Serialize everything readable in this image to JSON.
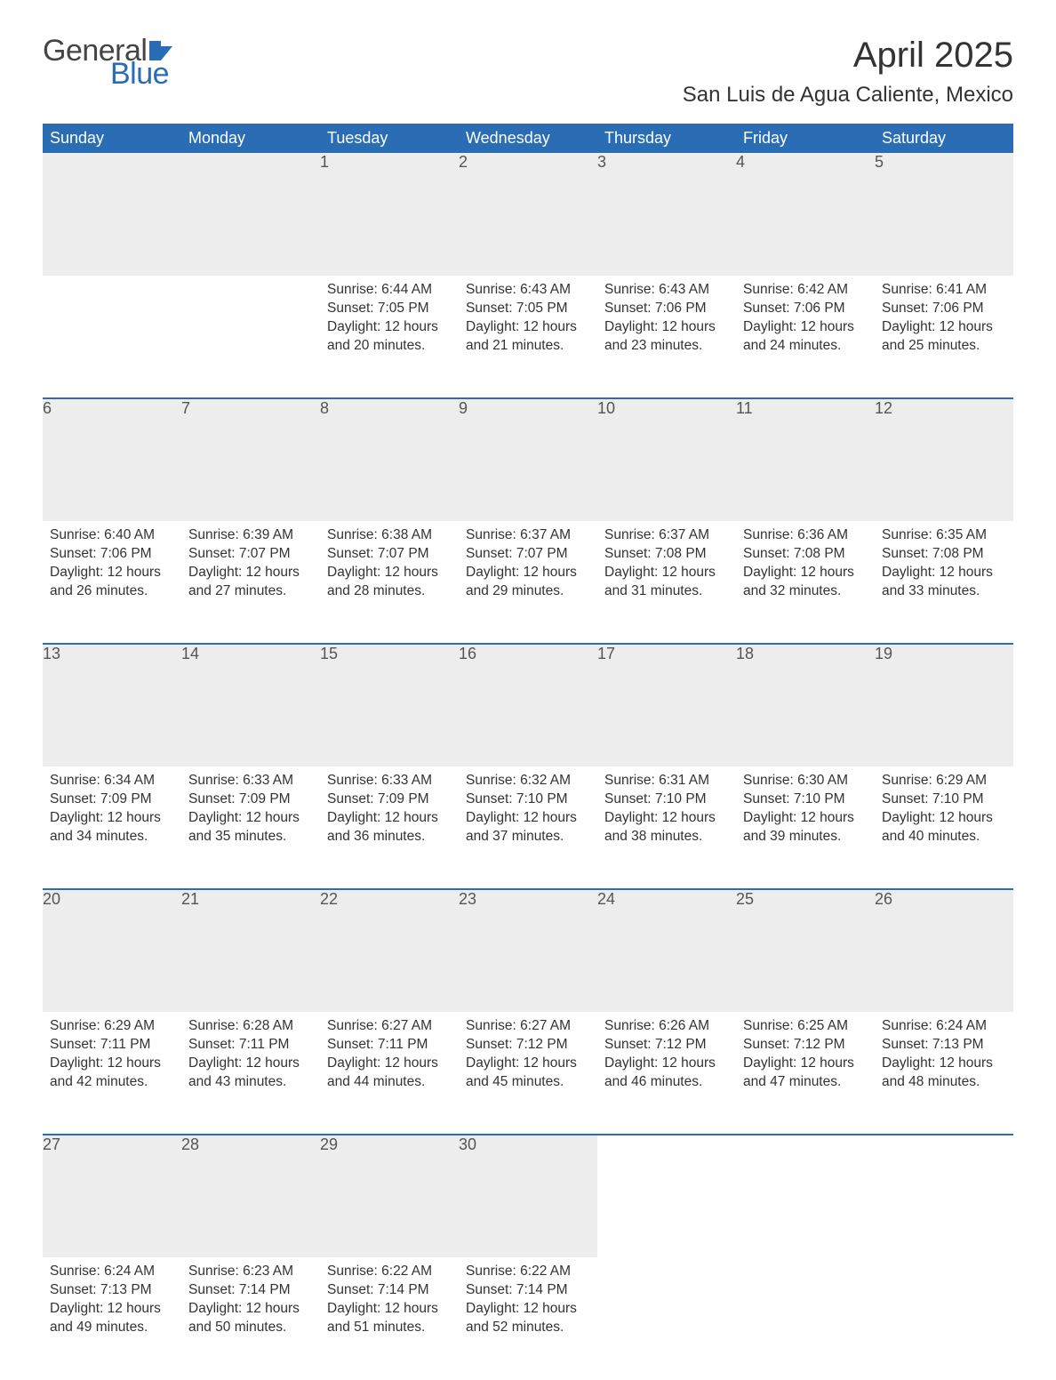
{
  "logo": {
    "text1": "General",
    "text2": "Blue",
    "shape_color": "#2a6db5"
  },
  "title": "April 2025",
  "location": "San Luis de Agua Caliente, Mexico",
  "colors": {
    "header_bg": "#2a6db5",
    "header_text": "#ffffff",
    "daynum_bg": "#ededed",
    "daynum_text": "#555555",
    "body_text": "#333333",
    "row_border": "#2a6db5"
  },
  "weekdays": [
    "Sunday",
    "Monday",
    "Tuesday",
    "Wednesday",
    "Thursday",
    "Friday",
    "Saturday"
  ],
  "weeks": [
    [
      null,
      null,
      {
        "n": "1",
        "sunrise": "6:44 AM",
        "sunset": "7:05 PM",
        "daylight": "12 hours and 20 minutes."
      },
      {
        "n": "2",
        "sunrise": "6:43 AM",
        "sunset": "7:05 PM",
        "daylight": "12 hours and 21 minutes."
      },
      {
        "n": "3",
        "sunrise": "6:43 AM",
        "sunset": "7:06 PM",
        "daylight": "12 hours and 23 minutes."
      },
      {
        "n": "4",
        "sunrise": "6:42 AM",
        "sunset": "7:06 PM",
        "daylight": "12 hours and 24 minutes."
      },
      {
        "n": "5",
        "sunrise": "6:41 AM",
        "sunset": "7:06 PM",
        "daylight": "12 hours and 25 minutes."
      }
    ],
    [
      {
        "n": "6",
        "sunrise": "6:40 AM",
        "sunset": "7:06 PM",
        "daylight": "12 hours and 26 minutes."
      },
      {
        "n": "7",
        "sunrise": "6:39 AM",
        "sunset": "7:07 PM",
        "daylight": "12 hours and 27 minutes."
      },
      {
        "n": "8",
        "sunrise": "6:38 AM",
        "sunset": "7:07 PM",
        "daylight": "12 hours and 28 minutes."
      },
      {
        "n": "9",
        "sunrise": "6:37 AM",
        "sunset": "7:07 PM",
        "daylight": "12 hours and 29 minutes."
      },
      {
        "n": "10",
        "sunrise": "6:37 AM",
        "sunset": "7:08 PM",
        "daylight": "12 hours and 31 minutes."
      },
      {
        "n": "11",
        "sunrise": "6:36 AM",
        "sunset": "7:08 PM",
        "daylight": "12 hours and 32 minutes."
      },
      {
        "n": "12",
        "sunrise": "6:35 AM",
        "sunset": "7:08 PM",
        "daylight": "12 hours and 33 minutes."
      }
    ],
    [
      {
        "n": "13",
        "sunrise": "6:34 AM",
        "sunset": "7:09 PM",
        "daylight": "12 hours and 34 minutes."
      },
      {
        "n": "14",
        "sunrise": "6:33 AM",
        "sunset": "7:09 PM",
        "daylight": "12 hours and 35 minutes."
      },
      {
        "n": "15",
        "sunrise": "6:33 AM",
        "sunset": "7:09 PM",
        "daylight": "12 hours and 36 minutes."
      },
      {
        "n": "16",
        "sunrise": "6:32 AM",
        "sunset": "7:10 PM",
        "daylight": "12 hours and 37 minutes."
      },
      {
        "n": "17",
        "sunrise": "6:31 AM",
        "sunset": "7:10 PM",
        "daylight": "12 hours and 38 minutes."
      },
      {
        "n": "18",
        "sunrise": "6:30 AM",
        "sunset": "7:10 PM",
        "daylight": "12 hours and 39 minutes."
      },
      {
        "n": "19",
        "sunrise": "6:29 AM",
        "sunset": "7:10 PM",
        "daylight": "12 hours and 40 minutes."
      }
    ],
    [
      {
        "n": "20",
        "sunrise": "6:29 AM",
        "sunset": "7:11 PM",
        "daylight": "12 hours and 42 minutes."
      },
      {
        "n": "21",
        "sunrise": "6:28 AM",
        "sunset": "7:11 PM",
        "daylight": "12 hours and 43 minutes."
      },
      {
        "n": "22",
        "sunrise": "6:27 AM",
        "sunset": "7:11 PM",
        "daylight": "12 hours and 44 minutes."
      },
      {
        "n": "23",
        "sunrise": "6:27 AM",
        "sunset": "7:12 PM",
        "daylight": "12 hours and 45 minutes."
      },
      {
        "n": "24",
        "sunrise": "6:26 AM",
        "sunset": "7:12 PM",
        "daylight": "12 hours and 46 minutes."
      },
      {
        "n": "25",
        "sunrise": "6:25 AM",
        "sunset": "7:12 PM",
        "daylight": "12 hours and 47 minutes."
      },
      {
        "n": "26",
        "sunrise": "6:24 AM",
        "sunset": "7:13 PM",
        "daylight": "12 hours and 48 minutes."
      }
    ],
    [
      {
        "n": "27",
        "sunrise": "6:24 AM",
        "sunset": "7:13 PM",
        "daylight": "12 hours and 49 minutes."
      },
      {
        "n": "28",
        "sunrise": "6:23 AM",
        "sunset": "7:14 PM",
        "daylight": "12 hours and 50 minutes."
      },
      {
        "n": "29",
        "sunrise": "6:22 AM",
        "sunset": "7:14 PM",
        "daylight": "12 hours and 51 minutes."
      },
      {
        "n": "30",
        "sunrise": "6:22 AM",
        "sunset": "7:14 PM",
        "daylight": "12 hours and 52 minutes."
      },
      null,
      null,
      null
    ]
  ],
  "labels": {
    "sunrise": "Sunrise: ",
    "sunset": "Sunset: ",
    "daylight": "Daylight: "
  }
}
